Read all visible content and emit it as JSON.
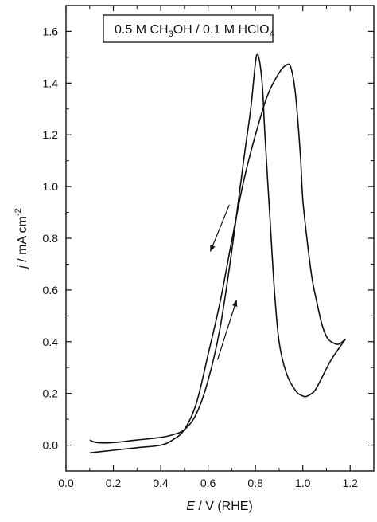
{
  "chart_data": {
    "type": "line",
    "title_parts": [
      "0.5 M CH",
      "3",
      "OH / 0.1 M HClO",
      "4"
    ],
    "xlabel_italic": "E",
    "xlabel_rest": " / V (RHE)",
    "ylabel_italic": "j",
    "ylabel_rest": " / mA cm",
    "ylabel_sup": "-2",
    "xlim": [
      0.0,
      1.3
    ],
    "ylim": [
      -0.1,
      1.7
    ],
    "xticks": [
      "0.0",
      "0.2",
      "0.4",
      "0.6",
      "0.8",
      "1.0",
      "1.2"
    ],
    "yticks": [
      "0.0",
      "0.2",
      "0.4",
      "0.6",
      "0.8",
      "1.0",
      "1.2",
      "1.4",
      "1.6"
    ],
    "grid": false,
    "series": [
      {
        "sweep": "forward",
        "x": [
          0.1,
          0.2,
          0.3,
          0.4,
          0.45,
          0.5,
          0.55,
          0.6,
          0.65,
          0.7,
          0.75,
          0.8,
          0.85,
          0.9,
          0.93,
          0.95,
          0.97,
          0.99,
          1.0,
          1.02,
          1.04,
          1.06,
          1.08,
          1.1,
          1.12,
          1.15,
          1.18
        ],
        "y": [
          -0.03,
          -0.02,
          -0.01,
          0.0,
          0.02,
          0.06,
          0.16,
          0.35,
          0.55,
          0.79,
          1.02,
          1.2,
          1.35,
          1.44,
          1.47,
          1.46,
          1.35,
          1.12,
          0.95,
          0.78,
          0.64,
          0.55,
          0.47,
          0.42,
          0.4,
          0.39,
          0.41
        ]
      },
      {
        "sweep": "reverse",
        "x": [
          1.18,
          1.12,
          1.08,
          1.05,
          1.02,
          1.0,
          0.97,
          0.93,
          0.9,
          0.88,
          0.86,
          0.84,
          0.83,
          0.82,
          0.81,
          0.8,
          0.78,
          0.75,
          0.7,
          0.65,
          0.6,
          0.55,
          0.5,
          0.45,
          0.4,
          0.3,
          0.2,
          0.13,
          0.1
        ],
        "y": [
          0.41,
          0.33,
          0.26,
          0.21,
          0.19,
          0.19,
          0.21,
          0.28,
          0.4,
          0.6,
          0.9,
          1.2,
          1.38,
          1.47,
          1.51,
          1.48,
          1.3,
          1.1,
          0.75,
          0.45,
          0.25,
          0.12,
          0.06,
          0.04,
          0.03,
          0.02,
          0.01,
          0.01,
          0.02
        ]
      }
    ],
    "annotations": [
      {
        "kind": "arrow",
        "direction": "down",
        "from": [
          0.69,
          0.93
        ],
        "to": [
          0.61,
          0.75
        ]
      },
      {
        "kind": "arrow",
        "direction": "up",
        "from": [
          0.64,
          0.33
        ],
        "to": [
          0.72,
          0.56
        ]
      }
    ]
  }
}
